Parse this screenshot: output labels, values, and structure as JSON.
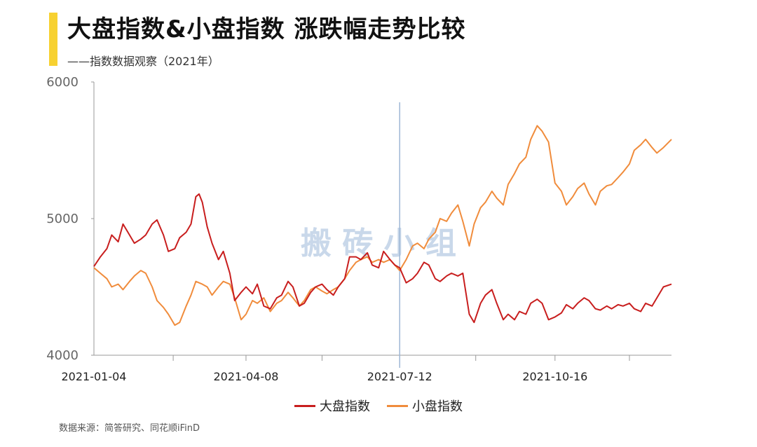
{
  "header": {
    "title": "大盘指数&小盘指数 涨跌幅走势比较",
    "subtitle": "——指数数据观察（2021年）"
  },
  "watermark": "搬 砖 小 组",
  "source": "数据来源：简答研究、同花顺iFinD",
  "colors": {
    "large_cap": "#c81e1e",
    "small_cap": "#f08c3c",
    "accent": "#f7d131",
    "axis": "#999999",
    "marker": "#9eb7d6",
    "watermark": "#c9d8ea"
  },
  "chart_data": {
    "type": "line",
    "title": "大盘指数&小盘指数 涨跌幅走势比较",
    "subtitle": "——指数数据观察（2021年）",
    "xlabel": "",
    "ylabel": "",
    "ylim": [
      4000,
      6000
    ],
    "yticks": [
      4000,
      5000,
      6000
    ],
    "xtick_labels": [
      "2021-01-04",
      "2021-04-08",
      "2021-07-12",
      "2021-10-16"
    ],
    "grid": false,
    "legend": "bottom-center",
    "vertical_marker_at": "2021-07-12",
    "series": [
      {
        "name": "大盘指数",
        "color": "#c81e1e",
        "points": [
          [
            "2021-01-04",
            4650
          ],
          [
            "2021-01-08",
            4720
          ],
          [
            "2021-01-12",
            4780
          ],
          [
            "2021-01-15",
            4880
          ],
          [
            "2021-01-19",
            4830
          ],
          [
            "2021-01-22",
            4960
          ],
          [
            "2021-01-26",
            4880
          ],
          [
            "2021-01-29",
            4820
          ],
          [
            "2021-02-02",
            4850
          ],
          [
            "2021-02-05",
            4880
          ],
          [
            "2021-02-09",
            4960
          ],
          [
            "2021-02-12",
            4990
          ],
          [
            "2021-02-16",
            4880
          ],
          [
            "2021-02-19",
            4760
          ],
          [
            "2021-02-23",
            4780
          ],
          [
            "2021-02-26",
            4860
          ],
          [
            "2021-03-02",
            4900
          ],
          [
            "2021-03-05",
            4960
          ],
          [
            "2021-03-08",
            5160
          ],
          [
            "2021-03-10",
            5180
          ],
          [
            "2021-03-12",
            5120
          ],
          [
            "2021-03-15",
            4940
          ],
          [
            "2021-03-18",
            4820
          ],
          [
            "2021-03-22",
            4700
          ],
          [
            "2021-03-25",
            4760
          ],
          [
            "2021-03-29",
            4600
          ],
          [
            "2021-04-01",
            4400
          ],
          [
            "2021-04-05",
            4460
          ],
          [
            "2021-04-08",
            4500
          ],
          [
            "2021-04-12",
            4450
          ],
          [
            "2021-04-15",
            4520
          ],
          [
            "2021-04-19",
            4360
          ],
          [
            "2021-04-23",
            4340
          ],
          [
            "2021-04-27",
            4420
          ],
          [
            "2021-04-30",
            4440
          ],
          [
            "2021-05-04",
            4540
          ],
          [
            "2021-05-07",
            4500
          ],
          [
            "2021-05-11",
            4360
          ],
          [
            "2021-05-14",
            4380
          ],
          [
            "2021-05-18",
            4460
          ],
          [
            "2021-05-21",
            4500
          ],
          [
            "2021-05-25",
            4520
          ],
          [
            "2021-05-28",
            4480
          ],
          [
            "2021-06-01",
            4440
          ],
          [
            "2021-06-04",
            4500
          ],
          [
            "2021-06-08",
            4560
          ],
          [
            "2021-06-11",
            4720
          ],
          [
            "2021-06-15",
            4720
          ],
          [
            "2021-06-18",
            4700
          ],
          [
            "2021-06-22",
            4750
          ],
          [
            "2021-06-25",
            4660
          ],
          [
            "2021-06-29",
            4640
          ],
          [
            "2021-07-02",
            4760
          ],
          [
            "2021-07-06",
            4700
          ],
          [
            "2021-07-09",
            4660
          ],
          [
            "2021-07-12",
            4640
          ],
          [
            "2021-07-16",
            4530
          ],
          [
            "2021-07-20",
            4560
          ],
          [
            "2021-07-23",
            4600
          ],
          [
            "2021-07-27",
            4680
          ],
          [
            "2021-07-30",
            4660
          ],
          [
            "2021-08-03",
            4560
          ],
          [
            "2021-08-06",
            4540
          ],
          [
            "2021-08-10",
            4580
          ],
          [
            "2021-08-13",
            4600
          ],
          [
            "2021-08-17",
            4580
          ],
          [
            "2021-08-20",
            4600
          ],
          [
            "2021-08-24",
            4300
          ],
          [
            "2021-08-27",
            4240
          ],
          [
            "2021-08-31",
            4380
          ],
          [
            "2021-09-03",
            4440
          ],
          [
            "2021-09-07",
            4480
          ],
          [
            "2021-09-10",
            4380
          ],
          [
            "2021-09-14",
            4260
          ],
          [
            "2021-09-17",
            4300
          ],
          [
            "2021-09-21",
            4260
          ],
          [
            "2021-09-24",
            4320
          ],
          [
            "2021-09-28",
            4300
          ],
          [
            "2021-10-01",
            4380
          ],
          [
            "2021-10-05",
            4410
          ],
          [
            "2021-10-08",
            4380
          ],
          [
            "2021-10-12",
            4260
          ],
          [
            "2021-10-16",
            4280
          ],
          [
            "2021-10-20",
            4310
          ],
          [
            "2021-10-23",
            4370
          ],
          [
            "2021-10-27",
            4340
          ],
          [
            "2021-10-30",
            4380
          ],
          [
            "2021-11-03",
            4420
          ],
          [
            "2021-11-06",
            4400
          ],
          [
            "2021-11-10",
            4340
          ],
          [
            "2021-11-13",
            4330
          ],
          [
            "2021-11-17",
            4360
          ],
          [
            "2021-11-20",
            4340
          ],
          [
            "2021-11-24",
            4370
          ],
          [
            "2021-11-27",
            4360
          ],
          [
            "2021-12-01",
            4380
          ],
          [
            "2021-12-04",
            4340
          ],
          [
            "2021-12-08",
            4320
          ],
          [
            "2021-12-11",
            4380
          ],
          [
            "2021-12-15",
            4360
          ],
          [
            "2021-12-18",
            4420
          ],
          [
            "2021-12-22",
            4500
          ],
          [
            "2021-12-27",
            4520
          ]
        ]
      },
      {
        "name": "小盘指数",
        "color": "#f08c3c",
        "points": [
          [
            "2021-01-04",
            4640
          ],
          [
            "2021-01-08",
            4600
          ],
          [
            "2021-01-12",
            4560
          ],
          [
            "2021-01-15",
            4500
          ],
          [
            "2021-01-19",
            4520
          ],
          [
            "2021-01-22",
            4480
          ],
          [
            "2021-01-26",
            4540
          ],
          [
            "2021-01-29",
            4580
          ],
          [
            "2021-02-02",
            4620
          ],
          [
            "2021-02-05",
            4600
          ],
          [
            "2021-02-09",
            4500
          ],
          [
            "2021-02-12",
            4400
          ],
          [
            "2021-02-16",
            4350
          ],
          [
            "2021-02-19",
            4300
          ],
          [
            "2021-02-23",
            4220
          ],
          [
            "2021-02-26",
            4240
          ],
          [
            "2021-03-02",
            4360
          ],
          [
            "2021-03-05",
            4440
          ],
          [
            "2021-03-08",
            4540
          ],
          [
            "2021-03-12",
            4520
          ],
          [
            "2021-03-15",
            4500
          ],
          [
            "2021-03-18",
            4440
          ],
          [
            "2021-03-22",
            4500
          ],
          [
            "2021-03-25",
            4540
          ],
          [
            "2021-03-29",
            4520
          ],
          [
            "2021-04-01",
            4420
          ],
          [
            "2021-04-05",
            4260
          ],
          [
            "2021-04-08",
            4300
          ],
          [
            "2021-04-12",
            4400
          ],
          [
            "2021-04-15",
            4380
          ],
          [
            "2021-04-19",
            4420
          ],
          [
            "2021-04-23",
            4320
          ],
          [
            "2021-04-27",
            4380
          ],
          [
            "2021-04-30",
            4400
          ],
          [
            "2021-05-04",
            4460
          ],
          [
            "2021-05-07",
            4420
          ],
          [
            "2021-05-11",
            4360
          ],
          [
            "2021-05-14",
            4400
          ],
          [
            "2021-05-18",
            4480
          ],
          [
            "2021-05-21",
            4500
          ],
          [
            "2021-05-25",
            4470
          ],
          [
            "2021-05-28",
            4450
          ],
          [
            "2021-06-01",
            4480
          ],
          [
            "2021-06-04",
            4500
          ],
          [
            "2021-06-08",
            4560
          ],
          [
            "2021-06-11",
            4620
          ],
          [
            "2021-06-15",
            4680
          ],
          [
            "2021-06-18",
            4700
          ],
          [
            "2021-06-22",
            4720
          ],
          [
            "2021-06-25",
            4680
          ],
          [
            "2021-06-29",
            4700
          ],
          [
            "2021-07-02",
            4680
          ],
          [
            "2021-07-06",
            4700
          ],
          [
            "2021-07-09",
            4660
          ],
          [
            "2021-07-12",
            4620
          ],
          [
            "2021-07-16",
            4700
          ],
          [
            "2021-07-20",
            4800
          ],
          [
            "2021-07-23",
            4820
          ],
          [
            "2021-07-27",
            4780
          ],
          [
            "2021-07-30",
            4850
          ],
          [
            "2021-08-03",
            4900
          ],
          [
            "2021-08-06",
            5000
          ],
          [
            "2021-08-10",
            4980
          ],
          [
            "2021-08-13",
            5040
          ],
          [
            "2021-08-17",
            5100
          ],
          [
            "2021-08-20",
            4980
          ],
          [
            "2021-08-24",
            4800
          ],
          [
            "2021-08-27",
            4960
          ],
          [
            "2021-08-31",
            5080
          ],
          [
            "2021-09-03",
            5120
          ],
          [
            "2021-09-07",
            5200
          ],
          [
            "2021-09-10",
            5150
          ],
          [
            "2021-09-14",
            5100
          ],
          [
            "2021-09-17",
            5250
          ],
          [
            "2021-09-21",
            5330
          ],
          [
            "2021-09-24",
            5400
          ],
          [
            "2021-09-28",
            5450
          ],
          [
            "2021-10-01",
            5580
          ],
          [
            "2021-10-05",
            5680
          ],
          [
            "2021-10-08",
            5640
          ],
          [
            "2021-10-12",
            5560
          ],
          [
            "2021-10-16",
            5260
          ],
          [
            "2021-10-20",
            5200
          ],
          [
            "2021-10-23",
            5100
          ],
          [
            "2021-10-27",
            5160
          ],
          [
            "2021-10-30",
            5220
          ],
          [
            "2021-11-03",
            5260
          ],
          [
            "2021-11-06",
            5180
          ],
          [
            "2021-11-10",
            5100
          ],
          [
            "2021-11-13",
            5200
          ],
          [
            "2021-11-17",
            5240
          ],
          [
            "2021-11-20",
            5250
          ],
          [
            "2021-11-24",
            5300
          ],
          [
            "2021-11-27",
            5340
          ],
          [
            "2021-12-01",
            5400
          ],
          [
            "2021-12-04",
            5500
          ],
          [
            "2021-12-08",
            5540
          ],
          [
            "2021-12-11",
            5580
          ],
          [
            "2021-12-15",
            5520
          ],
          [
            "2021-12-18",
            5480
          ],
          [
            "2021-12-22",
            5520
          ],
          [
            "2021-12-27",
            5580
          ]
        ]
      }
    ]
  }
}
